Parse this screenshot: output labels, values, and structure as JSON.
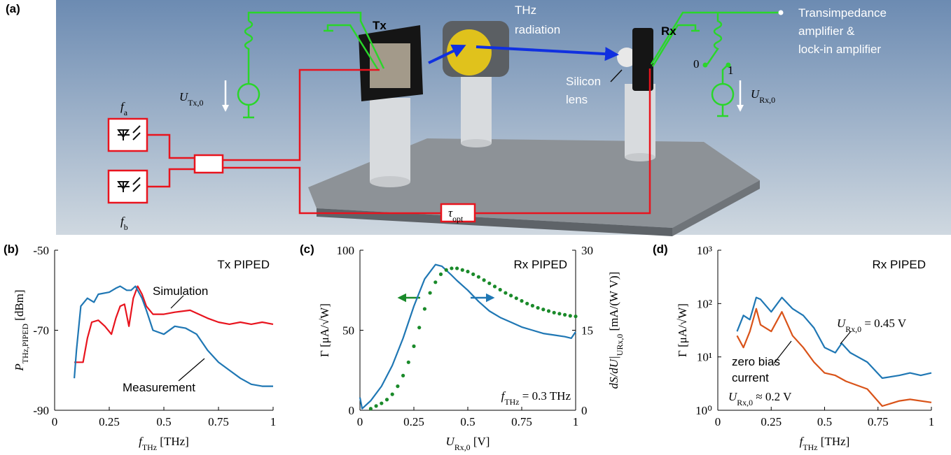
{
  "diagram": {
    "panel_label": "(a)",
    "tx": "Tx",
    "rx": "Rx",
    "thz_label": [
      "THz",
      "radiation"
    ],
    "amplifier_label": [
      "Transimpedance",
      "amplifier &",
      "lock-in amplifier"
    ],
    "lens_label": [
      "Silicon",
      "lens"
    ],
    "u_tx": [
      {
        "text": "U",
        "style": "italic"
      },
      {
        "text": "Tx,0",
        "style": "sub"
      }
    ],
    "u_rx": [
      {
        "text": "U",
        "style": "italic"
      },
      {
        "text": "Rx,0",
        "style": "sub"
      }
    ],
    "f_a": [
      {
        "text": "f",
        "style": "italic"
      },
      {
        "text": "a",
        "style": "sub"
      }
    ],
    "f_b": [
      {
        "text": "f",
        "style": "italic"
      },
      {
        "text": "b",
        "style": "sub"
      }
    ],
    "tau": [
      {
        "text": "τ",
        "style": "italic"
      },
      {
        "text": "opt",
        "style": "sub"
      }
    ],
    "switch_states": [
      "0",
      "1"
    ]
  },
  "chart_data": [
    {
      "type": "line",
      "panel_label": "(b)",
      "xlabel": [
        {
          "text": "f",
          "style": "italic"
        },
        {
          "text": "THz",
          "style": "sub"
        },
        {
          "text": " [THz]"
        }
      ],
      "ylabel": [
        {
          "text": "P",
          "style": "italic"
        },
        {
          "text": "THz,PIPED",
          "style": "sub"
        },
        {
          "text": " [dBm]"
        }
      ],
      "xlim": [
        0,
        1
      ],
      "xticks": [
        0,
        0.25,
        0.5,
        0.75,
        1
      ],
      "ylim": [
        -90,
        -50
      ],
      "yticks": [
        -90,
        -70,
        -50
      ],
      "annotations": [
        [
          {
            "text": "Tx PIPED"
          }
        ]
      ],
      "series": [
        {
          "name": "Simulation",
          "color": "#e8141e",
          "x": [
            0.09,
            0.13,
            0.15,
            0.17,
            0.2,
            0.23,
            0.26,
            0.28,
            0.3,
            0.32,
            0.34,
            0.36,
            0.38,
            0.4,
            0.42,
            0.45,
            0.5,
            0.55,
            0.62,
            0.7,
            0.75,
            0.8,
            0.85,
            0.9,
            0.95,
            1
          ],
          "values": [
            -78,
            -78,
            -72,
            -68,
            -67.5,
            -69,
            -71,
            -67,
            -64,
            -63.5,
            -69,
            -62,
            -59,
            -61,
            -64,
            -66,
            -66,
            -65.5,
            -65,
            -67,
            -68,
            -68.5,
            -68,
            -68.5,
            -68,
            -68.5
          ]
        },
        {
          "name": "Measurement",
          "color": "#1f77b4",
          "x": [
            0.09,
            0.1,
            0.12,
            0.15,
            0.18,
            0.2,
            0.25,
            0.28,
            0.3,
            0.33,
            0.35,
            0.37,
            0.4,
            0.42,
            0.45,
            0.5,
            0.55,
            0.6,
            0.65,
            0.7,
            0.75,
            0.8,
            0.85,
            0.9,
            0.95,
            1
          ],
          "values": [
            -82,
            -75,
            -64,
            -62,
            -63,
            -61,
            -60.5,
            -59.5,
            -59,
            -60,
            -60,
            -59,
            -62,
            -65,
            -70,
            -71,
            -69,
            -69.5,
            -71,
            -75,
            -78,
            -80,
            -82,
            -83.5,
            -84,
            -84
          ]
        }
      ]
    },
    {
      "type": "line",
      "panel_label": "(c)",
      "xlabel": [
        {
          "text": "U",
          "style": "italic"
        },
        {
          "text": "Rx,0",
          "style": "sub"
        },
        {
          "text": " [V]"
        }
      ],
      "ylabel": [
        {
          "text": "Γ [μA/√W]"
        }
      ],
      "y2label": [
        {
          "text": "dS/dU|",
          "style": "italic"
        },
        {
          "text": "URx,0",
          "style": "sub"
        },
        {
          "text": " [mA/(W V)]"
        }
      ],
      "xlim": [
        0,
        1
      ],
      "xticks": [
        0,
        0.25,
        0.5,
        0.75,
        1
      ],
      "ylim": [
        0,
        100
      ],
      "yticks": [
        0,
        50,
        100
      ],
      "y2lim": [
        0,
        30
      ],
      "y2ticks": [
        0,
        15,
        30
      ],
      "annotations": [
        [
          {
            "text": "Rx PIPED"
          }
        ],
        [
          {
            "text": "f",
            "style": "italic"
          },
          {
            "text": "THz",
            "style": "sub"
          },
          {
            "text": " = 0.3 THz"
          }
        ]
      ],
      "series": [
        {
          "color": "#1f77b4",
          "x": [
            0,
            0.01,
            0.05,
            0.1,
            0.15,
            0.2,
            0.25,
            0.3,
            0.35,
            0.38,
            0.42,
            0.45,
            0.5,
            0.55,
            0.6,
            0.65,
            0.7,
            0.75,
            0.8,
            0.85,
            0.9,
            0.95,
            0.98,
            1
          ],
          "values": [
            8,
            1,
            6,
            15,
            28,
            45,
            65,
            82,
            91,
            90,
            85,
            81,
            75,
            68,
            62,
            58,
            55,
            52,
            50,
            48,
            47,
            46,
            45,
            49
          ]
        },
        {
          "color": "#1a8a2a",
          "axis": "y2",
          "style": "dots",
          "x": [
            0.05,
            0.075,
            0.1,
            0.125,
            0.15,
            0.175,
            0.2,
            0.225,
            0.25,
            0.275,
            0.3,
            0.325,
            0.35,
            0.375,
            0.4,
            0.425,
            0.45,
            0.475,
            0.5,
            0.525,
            0.55,
            0.575,
            0.6,
            0.625,
            0.65,
            0.675,
            0.7,
            0.725,
            0.75,
            0.775,
            0.8,
            0.825,
            0.85,
            0.875,
            0.9,
            0.925,
            0.95,
            0.975,
            1
          ],
          "values": [
            0.3,
            0.8,
            1.3,
            2,
            3,
            4.5,
            6.5,
            9,
            12,
            15.5,
            19,
            22,
            24,
            25.5,
            26.3,
            26.6,
            26.6,
            26.3,
            26,
            25.5,
            25,
            24.4,
            23.8,
            23.2,
            22.6,
            22,
            21.5,
            21,
            20.5,
            20,
            19.6,
            19.2,
            18.9,
            18.6,
            18.3,
            18.1,
            17.9,
            17.7,
            17.6
          ]
        }
      ]
    },
    {
      "type": "line",
      "panel_label": "(d)",
      "log": true,
      "xlabel": [
        {
          "text": "f",
          "style": "italic"
        },
        {
          "text": "THz",
          "style": "sub"
        },
        {
          "text": " [THz]"
        }
      ],
      "ylabel": [
        {
          "text": "Γ [μA/√W]"
        }
      ],
      "xlim": [
        0,
        1
      ],
      "xticks": [
        0,
        0.25,
        0.5,
        0.75,
        1
      ],
      "ylim": [
        1,
        1000
      ],
      "yticks": [
        {
          "value": 1,
          "label": "10⁰"
        },
        {
          "value": 10,
          "label": "10¹"
        },
        {
          "value": 100,
          "label": "10²"
        },
        {
          "value": 1000,
          "label": "10³"
        }
      ],
      "annotations": [
        [
          {
            "text": "Rx PIPED"
          }
        ],
        [
          {
            "text": "U",
            "style": "italic"
          },
          {
            "text": "Rx,0",
            "style": "sub"
          },
          {
            "text": " = 0.45 V"
          }
        ],
        [
          {
            "text": "zero bias"
          }
        ],
        [
          {
            "text": "current"
          }
        ],
        [
          {
            "text": "U",
            "style": "italic"
          },
          {
            "text": "Rx,0",
            "style": "sub"
          },
          {
            "text": " ≈ 0.2 V"
          }
        ]
      ],
      "series": [
        {
          "color": "#1f77b4",
          "x": [
            0.09,
            0.12,
            0.15,
            0.18,
            0.2,
            0.25,
            0.3,
            0.35,
            0.4,
            0.45,
            0.5,
            0.55,
            0.58,
            0.62,
            0.7,
            0.77,
            0.85,
            0.9,
            0.95,
            1
          ],
          "values": [
            30,
            60,
            50,
            130,
            120,
            70,
            130,
            80,
            60,
            35,
            15,
            12,
            18,
            12,
            8,
            4,
            4.5,
            5,
            4.5,
            5
          ]
        },
        {
          "color": "#d95319",
          "x": [
            0.09,
            0.12,
            0.15,
            0.18,
            0.2,
            0.25,
            0.3,
            0.35,
            0.4,
            0.45,
            0.5,
            0.55,
            0.6,
            0.7,
            0.77,
            0.85,
            0.9,
            1
          ],
          "values": [
            25,
            15,
            30,
            80,
            40,
            30,
            70,
            25,
            15,
            8,
            5,
            4.5,
            3.5,
            2.5,
            1.2,
            1.5,
            1.6,
            1.4
          ]
        }
      ]
    }
  ]
}
